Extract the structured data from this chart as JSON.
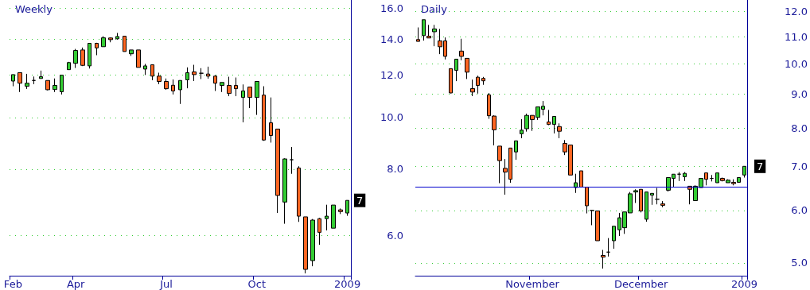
{
  "chart_data": [
    {
      "type": "candlestick",
      "title": "Weekly",
      "log": "y",
      "grid": "y",
      "categories": [
        "Feb",
        null,
        null,
        null,
        null,
        null,
        null,
        null,
        null,
        "Apr",
        null,
        null,
        null,
        null,
        null,
        null,
        null,
        null,
        null,
        null,
        null,
        null,
        "Jul",
        null,
        null,
        null,
        null,
        null,
        null,
        null,
        null,
        null,
        null,
        null,
        null,
        "Oct",
        null,
        null,
        null,
        null,
        null,
        null,
        null,
        null,
        null,
        null,
        null,
        null,
        "2009"
      ],
      "ohlc": [
        [
          11.7,
          12.03,
          11.44,
          12.03
        ],
        [
          12.13,
          12.13,
          11.16,
          11.59
        ],
        [
          11.44,
          12.07,
          11.31,
          11.59
        ],
        [
          11.73,
          11.93,
          11.54,
          11.73
        ],
        [
          11.83,
          12.24,
          11.83,
          11.92
        ],
        [
          11.73,
          11.73,
          11.24,
          11.27
        ],
        [
          11.28,
          11.83,
          11.16,
          11.48
        ],
        [
          11.17,
          12.0,
          11.04,
          12.0
        ],
        [
          12.29,
          12.71,
          12.29,
          12.67
        ],
        [
          12.63,
          13.44,
          12.38,
          13.35
        ],
        [
          13.38,
          13.52,
          12.48,
          12.52
        ],
        [
          12.49,
          13.77,
          12.35,
          13.77
        ],
        [
          13.77,
          13.8,
          13.08,
          13.5
        ],
        [
          13.57,
          14.2,
          13.57,
          14.1
        ],
        [
          14.09,
          14.12,
          13.83,
          13.99
        ],
        [
          14.04,
          14.4,
          13.99,
          14.18
        ],
        [
          14.2,
          14.2,
          13.29,
          13.29
        ],
        [
          13.16,
          13.38,
          13.04,
          13.38
        ],
        [
          13.38,
          13.38,
          12.41,
          12.41
        ],
        [
          12.32,
          12.6,
          12.01,
          12.49
        ],
        [
          12.55,
          12.55,
          11.74,
          11.95
        ],
        [
          11.95,
          12.13,
          11.54,
          11.68
        ],
        [
          11.68,
          11.83,
          11.27,
          11.32
        ],
        [
          11.49,
          11.78,
          11.04,
          11.21
        ],
        [
          11.27,
          11.73,
          10.6,
          11.73
        ],
        [
          11.76,
          12.41,
          11.34,
          12.13
        ],
        [
          12.17,
          12.55,
          11.7,
          12.03
        ],
        [
          12.1,
          12.37,
          11.8,
          12.1
        ],
        [
          12.06,
          12.45,
          11.82,
          11.95
        ],
        [
          11.95,
          12.0,
          11.21,
          11.59
        ],
        [
          11.48,
          11.63,
          11.16,
          11.63
        ],
        [
          11.48,
          11.92,
          10.96,
          11.09
        ],
        [
          11.48,
          11.88,
          10.96,
          11.32
        ],
        [
          10.9,
          11.53,
          9.79,
          11.21
        ],
        [
          11.4,
          11.4,
          10.41,
          10.9
        ],
        [
          10.9,
          11.68,
          10.11,
          11.68
        ],
        [
          11.01,
          11.44,
          9.04,
          9.07
        ],
        [
          9.77,
          10.9,
          8.97,
          9.25
        ],
        [
          9.51,
          9.51,
          6.62,
          7.14
        ],
        [
          6.94,
          8.38,
          6.32,
          8.36
        ],
        [
          8.33,
          8.8,
          7.84,
          8.33
        ],
        [
          8.04,
          8.1,
          6.37,
          6.53
        ],
        [
          6.51,
          6.51,
          5.1,
          5.19
        ],
        [
          5.39,
          6.45,
          5.26,
          6.42
        ],
        [
          6.46,
          6.48,
          5.77,
          6.09
        ],
        [
          6.46,
          6.86,
          6.14,
          6.53
        ],
        [
          6.2,
          6.85,
          6.2,
          6.85
        ],
        [
          6.71,
          6.75,
          6.59,
          6.66
        ],
        [
          6.62,
          6.99,
          6.54,
          6.99
        ]
      ],
      "colors": [
        "#33cc33",
        "#ff6622",
        "#33cc33",
        "#000000",
        "#33cc33",
        "#ff6622",
        "#33cc33",
        "#33cc33",
        "#33cc33",
        "#33cc33",
        "#ff6622",
        "#33cc33",
        "#ff6622",
        "#33cc33",
        "#ff6622",
        "#33cc33",
        "#ff6622",
        "#33cc33",
        "#ff6622",
        "#33cc33",
        "#ff6622",
        "#ff6622",
        "#ff6622",
        "#ff6622",
        "#33cc33",
        "#33cc33",
        "#ff6622",
        "#000000",
        "#ff6622",
        "#ff6622",
        "#33cc33",
        "#ff6622",
        "#ff6622",
        "#33cc33",
        "#ff6622",
        "#33cc33",
        "#ff6622",
        "#ff6622",
        "#ff6622",
        "#33cc33",
        "#000000",
        "#ff6622",
        "#ff6622",
        "#33cc33",
        "#ff6622",
        "#33cc33",
        "#33cc33",
        "#ff6622",
        "#33cc33"
      ],
      "ylim": [
        5.05,
        16.6
      ],
      "yticks": [
        {
          "value": 6,
          "label": "6.0"
        },
        {
          "value": 8,
          "label": "8.0"
        },
        {
          "value": 10,
          "label": "10.0"
        },
        {
          "value": 12,
          "label": "12.0"
        },
        {
          "value": 14,
          "label": "14.0"
        },
        {
          "value": 16,
          "label": "16.0"
        }
      ],
      "annotations": [
        "7"
      ]
    },
    {
      "type": "candlestick",
      "title": "Daily",
      "log": "y",
      "grid": "y",
      "categories": [
        null,
        null,
        null,
        null,
        null,
        null,
        null,
        null,
        null,
        null,
        null,
        null,
        null,
        null,
        null,
        null,
        null,
        null,
        null,
        null,
        null,
        "November",
        null,
        null,
        null,
        null,
        null,
        null,
        null,
        null,
        null,
        null,
        null,
        null,
        null,
        null,
        null,
        null,
        null,
        null,
        null,
        "December",
        null,
        null,
        null,
        null,
        null,
        null,
        null,
        null,
        null,
        null,
        null,
        null,
        null,
        null,
        null,
        null,
        null,
        null,
        "2009"
      ],
      "ohlc": [
        [
          10.89,
          11.36,
          10.82,
          10.82
        ],
        [
          11.04,
          11.67,
          10.85,
          11.67
        ],
        [
          11.02,
          11.46,
          10.95,
          10.95
        ],
        [
          11.19,
          11.46,
          10.64,
          11.3
        ],
        [
          10.84,
          11.3,
          10.35,
          10.62
        ],
        [
          10.84,
          10.97,
          10.16,
          10.27
        ],
        [
          9.84,
          9.84,
          9.03,
          9.04
        ],
        [
          9.78,
          10.17,
          9.42,
          10.17
        ],
        [
          10.46,
          10.92,
          10.13,
          10.27
        ],
        [
          10.2,
          10.2,
          9.49,
          9.72
        ],
        [
          9.18,
          9.47,
          8.94,
          9.07
        ],
        [
          9.55,
          9.6,
          9.02,
          9.28
        ],
        [
          9.51,
          9.56,
          9.3,
          9.43
        ],
        [
          8.98,
          9.04,
          8.26,
          8.35
        ],
        [
          8.34,
          8.36,
          7.53,
          7.95
        ],
        [
          7.51,
          7.51,
          6.6,
          7.14
        ],
        [
          6.95,
          7.18,
          6.34,
          6.86
        ],
        [
          7.46,
          7.46,
          6.61,
          6.69
        ],
        [
          7.36,
          7.65,
          7.16,
          7.65
        ],
        [
          7.84,
          8.25,
          7.72,
          7.94
        ],
        [
          7.98,
          8.41,
          7.9,
          8.36
        ],
        [
          8.36,
          8.36,
          7.92,
          8.24
        ],
        [
          8.3,
          8.61,
          8.23,
          8.61
        ],
        [
          8.54,
          8.79,
          8.36,
          8.63
        ],
        [
          8.17,
          8.52,
          8.08,
          8.1
        ],
        [
          8.1,
          8.33,
          7.85,
          8.33
        ],
        [
          8.04,
          8.13,
          7.72,
          7.91
        ],
        [
          7.58,
          7.67,
          7.28,
          7.36
        ],
        [
          7.54,
          7.54,
          6.79,
          6.79
        ],
        [
          6.5,
          6.82,
          6.38,
          6.61
        ],
        [
          6.89,
          6.89,
          6.51,
          6.51
        ],
        [
          6.51,
          6.51,
          5.94,
          6.1
        ],
        [
          6.0,
          6.0,
          5.7,
          6.0
        ],
        [
          5.99,
          5.99,
          5.4,
          5.4
        ],
        [
          5.13,
          5.23,
          4.9,
          5.1
        ],
        [
          5.19,
          5.45,
          5.11,
          5.19
        ],
        [
          5.4,
          5.68,
          5.25,
          5.68
        ],
        [
          5.61,
          5.95,
          5.49,
          5.85
        ],
        [
          5.65,
          5.97,
          5.53,
          5.97
        ],
        [
          5.95,
          6.4,
          5.95,
          6.36
        ],
        [
          6.4,
          6.46,
          6.16,
          6.43
        ],
        [
          6.46,
          6.46,
          5.96,
          5.99
        ],
        [
          5.82,
          6.4,
          5.77,
          6.4
        ],
        [
          6.33,
          6.37,
          6.12,
          6.37
        ],
        [
          6.24,
          6.49,
          6.13,
          6.24
        ],
        [
          6.14,
          6.2,
          6.07,
          6.11
        ],
        [
          6.44,
          6.73,
          6.41,
          6.73
        ],
        [
          6.71,
          6.81,
          6.52,
          6.81
        ],
        [
          6.81,
          6.86,
          6.65,
          6.81
        ],
        [
          6.75,
          6.86,
          6.65,
          6.83
        ],
        [
          6.53,
          6.53,
          6.13,
          6.46
        ],
        [
          6.21,
          6.55,
          6.21,
          6.53
        ],
        [
          6.5,
          6.71,
          6.5,
          6.71
        ],
        [
          6.84,
          6.84,
          6.55,
          6.69
        ],
        [
          6.71,
          6.79,
          6.64,
          6.71
        ],
        [
          6.61,
          6.84,
          6.61,
          6.84
        ],
        [
          6.71,
          6.73,
          6.64,
          6.66
        ],
        [
          6.61,
          6.69,
          6.61,
          6.67
        ],
        [
          6.62,
          6.69,
          6.55,
          6.59
        ],
        [
          6.62,
          6.73,
          6.61,
          6.73
        ],
        [
          6.79,
          7.0,
          6.73,
          7.0
        ]
      ],
      "colors": [
        "#ff6622",
        "#33cc33",
        "#ff6622",
        "#33cc33",
        "#ff6622",
        "#ff6622",
        "#ff6622",
        "#33cc33",
        "#ff6622",
        "#ff6622",
        "#ff6622",
        "#ff6622",
        "#ff6622",
        "#ff6622",
        "#ff6622",
        "#ff6622",
        "#ff6622",
        "#ff6622",
        "#33cc33",
        "#33cc33",
        "#33cc33",
        "#ff6622",
        "#33cc33",
        "#33cc33",
        "#ff6622",
        "#33cc33",
        "#ff6622",
        "#ff6622",
        "#ff6622",
        "#33cc33",
        "#ff6622",
        "#ff6622",
        "#000000",
        "#ff6622",
        "#ff6622",
        "#000000",
        "#33cc33",
        "#33cc33",
        "#33cc33",
        "#33cc33",
        "#33cc33",
        "#ff6622",
        "#33cc33",
        "#33cc33",
        "#000000",
        "#ff6622",
        "#33cc33",
        "#33cc33",
        "#000000",
        "#33cc33",
        "#ff6622",
        "#33cc33",
        "#33cc33",
        "#ff6622",
        "#000000",
        "#33cc33",
        "#ff6622",
        "#33cc33",
        "#ff6622",
        "#33cc33",
        "#33cc33"
      ],
      "ylim": [
        4.78,
        12.5
      ],
      "yticks": [
        {
          "value": 5,
          "label": "5.0"
        },
        {
          "value": 6,
          "label": "6.0"
        },
        {
          "value": 7,
          "label": "7.0"
        },
        {
          "value": 8,
          "label": "8.0"
        },
        {
          "value": 9,
          "label": "9.0"
        },
        {
          "value": 10,
          "label": "10.0"
        },
        {
          "value": 11,
          "label": "11.0"
        },
        {
          "value": 12,
          "label": "12.0"
        }
      ],
      "ref_lines": [
        {
          "axis": "y",
          "value": 6.52,
          "color": "#0000cc",
          "line_style": "solid"
        }
      ],
      "annotations": [
        "7"
      ]
    }
  ]
}
